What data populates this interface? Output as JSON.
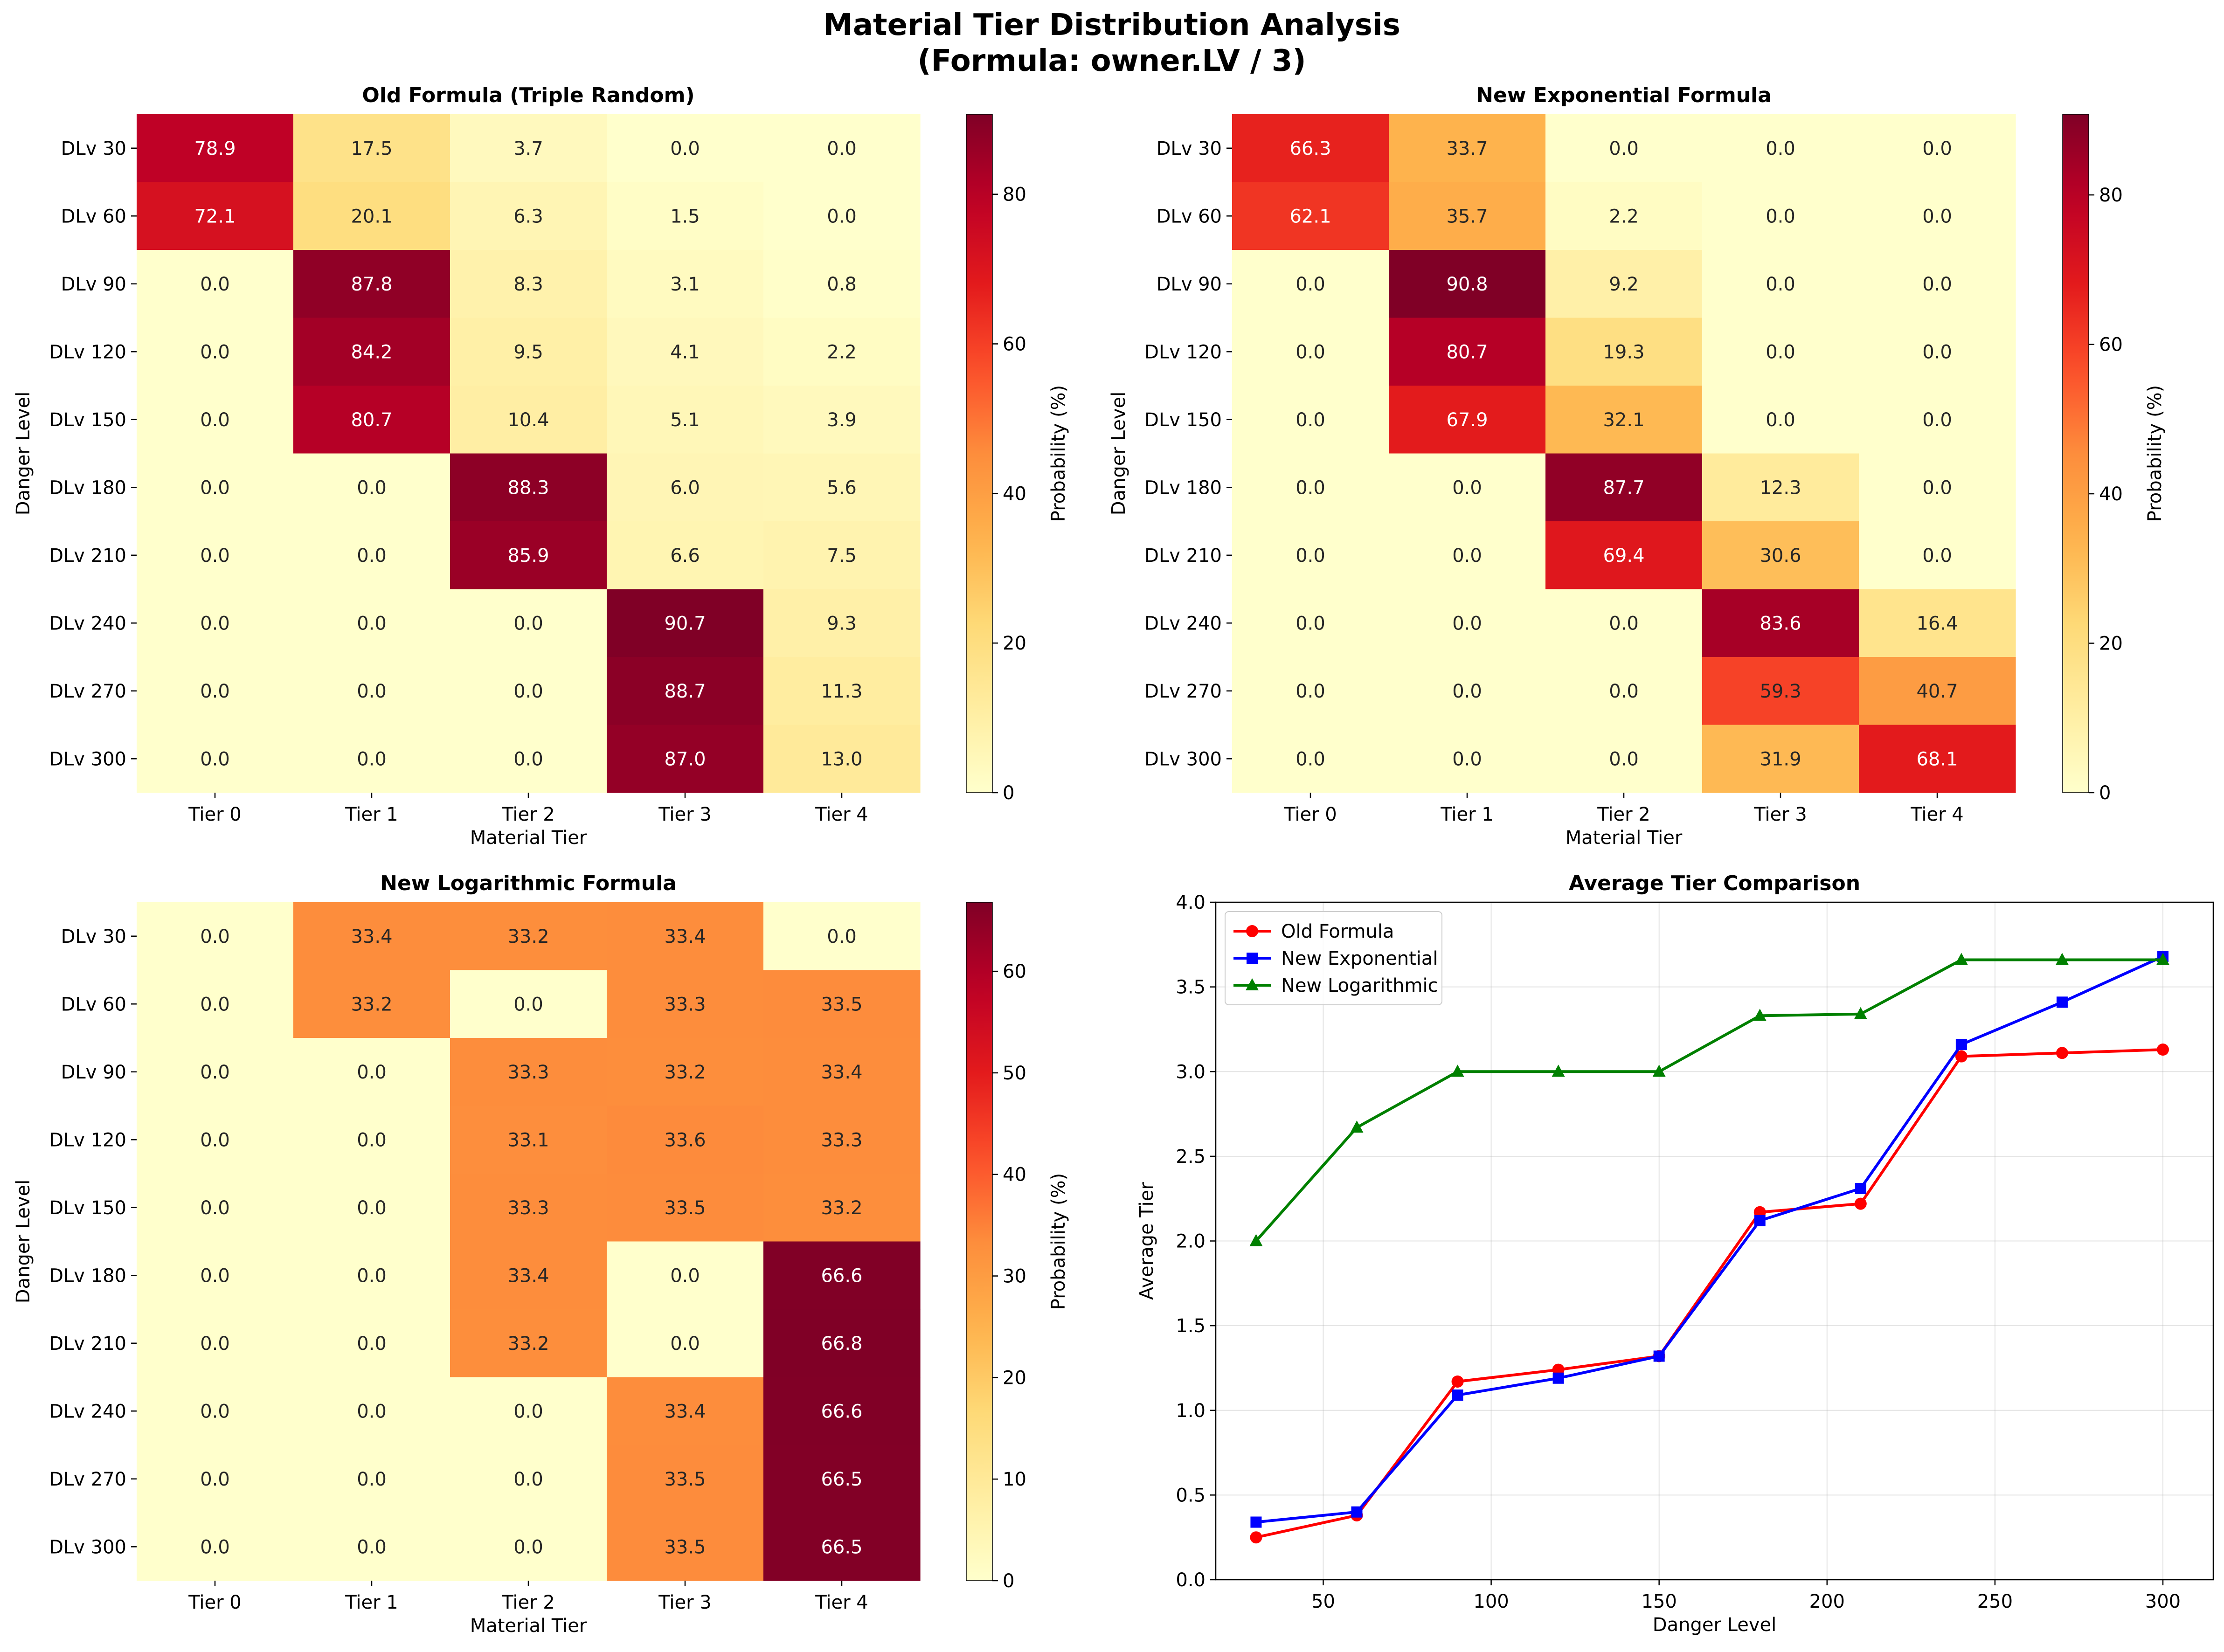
{
  "figure": {
    "title_line1": "Material Tier Distribution Analysis",
    "title_line2": "(Formula: owner.LV / 3)"
  },
  "chart_data": [
    {
      "type": "heatmap",
      "title": "Old Formula (Triple Random)",
      "xlabel": "Material Tier",
      "ylabel": "Danger Level",
      "colorbar_label": "Probability (%)",
      "colormap": "YlOrRd",
      "vmin": 0,
      "vmax": 90.7,
      "colorbar_ticks": [
        0,
        20,
        40,
        60,
        80
      ],
      "columns": [
        "Tier 0",
        "Tier 1",
        "Tier 2",
        "Tier 3",
        "Tier 4"
      ],
      "rows": [
        "DLv 30",
        "DLv 60",
        "DLv 90",
        "DLv 120",
        "DLv 150",
        "DLv 180",
        "DLv 210",
        "DLv 240",
        "DLv 270",
        "DLv 300"
      ],
      "values": [
        [
          78.9,
          17.5,
          3.7,
          0.0,
          0.0
        ],
        [
          72.1,
          20.1,
          6.3,
          1.5,
          0.0
        ],
        [
          0.0,
          87.8,
          8.3,
          3.1,
          0.8
        ],
        [
          0.0,
          84.2,
          9.5,
          4.1,
          2.2
        ],
        [
          0.0,
          80.7,
          10.4,
          5.1,
          3.9
        ],
        [
          0.0,
          0.0,
          88.3,
          6.0,
          5.6
        ],
        [
          0.0,
          0.0,
          85.9,
          6.6,
          7.5
        ],
        [
          0.0,
          0.0,
          0.0,
          90.7,
          9.3
        ],
        [
          0.0,
          0.0,
          0.0,
          88.7,
          11.3
        ],
        [
          0.0,
          0.0,
          0.0,
          87.0,
          13.0
        ]
      ]
    },
    {
      "type": "heatmap",
      "title": "New Exponential Formula",
      "xlabel": "Material Tier",
      "ylabel": "Danger Level",
      "colorbar_label": "Probability (%)",
      "colormap": "YlOrRd",
      "vmin": 0,
      "vmax": 90.8,
      "colorbar_ticks": [
        0,
        20,
        40,
        60,
        80
      ],
      "columns": [
        "Tier 0",
        "Tier 1",
        "Tier 2",
        "Tier 3",
        "Tier 4"
      ],
      "rows": [
        "DLv 30",
        "DLv 60",
        "DLv 90",
        "DLv 120",
        "DLv 150",
        "DLv 180",
        "DLv 210",
        "DLv 240",
        "DLv 270",
        "DLv 300"
      ],
      "values": [
        [
          66.3,
          33.7,
          0.0,
          0.0,
          0.0
        ],
        [
          62.1,
          35.7,
          2.2,
          0.0,
          0.0
        ],
        [
          0.0,
          90.8,
          9.2,
          0.0,
          0.0
        ],
        [
          0.0,
          80.7,
          19.3,
          0.0,
          0.0
        ],
        [
          0.0,
          67.9,
          32.1,
          0.0,
          0.0
        ],
        [
          0.0,
          0.0,
          87.7,
          12.3,
          0.0
        ],
        [
          0.0,
          0.0,
          69.4,
          30.6,
          0.0
        ],
        [
          0.0,
          0.0,
          0.0,
          83.6,
          16.4
        ],
        [
          0.0,
          0.0,
          0.0,
          59.3,
          40.7
        ],
        [
          0.0,
          0.0,
          0.0,
          31.9,
          68.1
        ]
      ]
    },
    {
      "type": "heatmap",
      "title": "New Logarithmic Formula",
      "xlabel": "Material Tier",
      "ylabel": "Danger Level",
      "colorbar_label": "Probability (%)",
      "colormap": "YlOrRd",
      "vmin": 0,
      "vmax": 66.8,
      "colorbar_ticks": [
        0,
        10,
        20,
        30,
        40,
        50,
        60
      ],
      "columns": [
        "Tier 0",
        "Tier 1",
        "Tier 2",
        "Tier 3",
        "Tier 4"
      ],
      "rows": [
        "DLv 30",
        "DLv 60",
        "DLv 90",
        "DLv 120",
        "DLv 150",
        "DLv 180",
        "DLv 210",
        "DLv 240",
        "DLv 270",
        "DLv 300"
      ],
      "values": [
        [
          0.0,
          33.4,
          33.2,
          33.4,
          0.0
        ],
        [
          0.0,
          33.2,
          0.0,
          33.3,
          33.5
        ],
        [
          0.0,
          0.0,
          33.3,
          33.2,
          33.4
        ],
        [
          0.0,
          0.0,
          33.1,
          33.6,
          33.3
        ],
        [
          0.0,
          0.0,
          33.3,
          33.5,
          33.2
        ],
        [
          0.0,
          0.0,
          33.4,
          0.0,
          66.6
        ],
        [
          0.0,
          0.0,
          33.2,
          0.0,
          66.8
        ],
        [
          0.0,
          0.0,
          0.0,
          33.4,
          66.6
        ],
        [
          0.0,
          0.0,
          0.0,
          33.5,
          66.5
        ],
        [
          0.0,
          0.0,
          0.0,
          33.5,
          66.5
        ]
      ]
    },
    {
      "type": "line",
      "title": "Average Tier Comparison",
      "xlabel": "Danger Level",
      "ylabel": "Average Tier",
      "xlim": [
        18,
        315
      ],
      "ylim": [
        0,
        4
      ],
      "xticks": [
        50,
        100,
        150,
        200,
        250,
        300
      ],
      "yticks": [
        0.0,
        0.5,
        1.0,
        1.5,
        2.0,
        2.5,
        3.0,
        3.5,
        4.0
      ],
      "grid": true,
      "legend": "upper-left",
      "x": [
        30,
        60,
        90,
        120,
        150,
        180,
        210,
        240,
        270,
        300
      ],
      "series": [
        {
          "name": "Old Formula",
          "color": "#ff0000",
          "marker": "circle",
          "values": [
            0.25,
            0.38,
            1.17,
            1.24,
            1.32,
            2.17,
            2.22,
            3.09,
            3.11,
            3.13
          ]
        },
        {
          "name": "New Exponential",
          "color": "#0000ff",
          "marker": "square",
          "values": [
            0.34,
            0.4,
            1.09,
            1.19,
            1.32,
            2.12,
            2.31,
            3.16,
            3.41,
            3.68
          ]
        },
        {
          "name": "New Logarithmic",
          "color": "#008000",
          "marker": "triangle",
          "values": [
            2.0,
            2.67,
            3.0,
            3.0,
            3.0,
            3.33,
            3.34,
            3.66,
            3.66,
            3.66
          ]
        }
      ]
    }
  ]
}
